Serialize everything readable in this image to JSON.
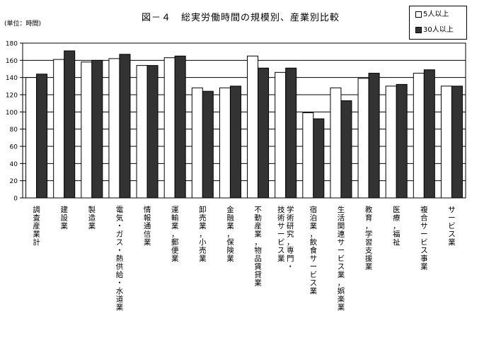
{
  "chart_data": {
    "type": "bar",
    "title": "図－４　総実労働時間の規模別、産業別比較",
    "ylabel": "(単位：時間)",
    "ylim": [
      0,
      180
    ],
    "yticks": [
      0,
      20,
      40,
      60,
      80,
      100,
      120,
      140,
      160,
      180
    ],
    "grid": true,
    "legend_position": "top-right",
    "categories": [
      "調査産業計",
      "建設業",
      "製造業",
      "電気・ガス・熱供給・水道業",
      "情報通信業",
      "運輸業，郵便業",
      "卸売業，小売業",
      "金融業，保険業",
      "不動産業，物品賃貸業",
      "学術研究，専門・技術サービス業",
      "宿泊業，飲食サービス業",
      "生活関連サービス業，娯楽業",
      "教育，学習支援業",
      "医療，福祉",
      "複合サービス事業",
      "サービス業"
    ],
    "category_lines": [
      [
        "調査産業計"
      ],
      [
        "建設業"
      ],
      [
        "製造業"
      ],
      [
        "電気・ガス・熱供給・水道業"
      ],
      [
        "情報通信業"
      ],
      [
        "運輸業，郵便業"
      ],
      [
        "卸売業，小売業"
      ],
      [
        "金融業，保険業"
      ],
      [
        "不動産業，物品賃貸業"
      ],
      [
        "学術研究，専門・",
        "技術サービス業"
      ],
      [
        "宿泊業，飲食サービス業"
      ],
      [
        "生活関連サービス業，娯楽業"
      ],
      [
        "教育，学習支援業"
      ],
      [
        "医療，福祉"
      ],
      [
        "複合サービス事業"
      ],
      [
        "サービス業"
      ]
    ],
    "series": [
      {
        "name": "5人以上",
        "color": "#ffffff",
        "values": [
          140,
          161,
          158,
          162,
          154,
          163,
          128,
          128,
          165,
          146,
          99,
          128,
          139,
          130,
          145,
          130
        ]
      },
      {
        "name": "30人以上",
        "color": "#333333",
        "values": [
          144,
          171,
          160,
          167,
          154,
          165,
          124,
          130,
          151,
          151,
          92,
          113,
          145,
          132,
          149,
          130
        ]
      }
    ]
  }
}
